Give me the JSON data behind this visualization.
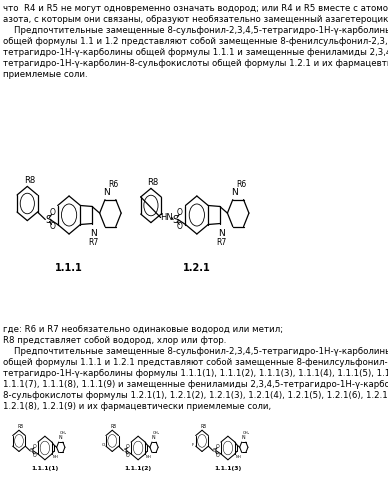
{
  "bg_color": "#ffffff",
  "text_color": "#000000",
  "font_size_body": 6.2,
  "paragraphs": [
    "что  R4 и R5 не могут одновременно означать водород; или R4 и R5 вместе с атомом",
    "азота, с которым они связаны, образуют необязательно замещенный азагетероцикл.",
    "    Предпочтительные замещенные 8-сульфонил-2,3,4,5-тетрагидро-1H-γ-карболины",
    "общей формулы 1.1 и 1.2 представляют собой замещенные 8-фенилсульфонил-2,3,4,5-",
    "тетрагидро-1H-γ-карболины общей формулы 1.1.1 и замещенные фениламиды 2,3,4,5-",
    "тетрагидро-1H-γ-карболин-8-сульфокислоты общей формулы 1.2.1 и их фармацевтически",
    "приемлемые соли."
  ],
  "label_111": "1.1.1",
  "label_121": "1.2.1",
  "text_where": "где: R6 и R7 необязательно одинаковые водород или метил;",
  "text_R8": "R8 представляет собой водород, хлор или фтор.",
  "para2": "    Предпочтительные замещенные 8-сульфонил-2,3,4,5-тетрагидро-1H-γ-карболины",
  "para2b": "общей формулы 1.1.1 и 1.2.1 представляют собой замещенные 8-фенилсульфонил-2,3,4,5-",
  "para2c": "тетрагидро-1H-γ-карболины формулы 1.1.1(1), 1.1.1(2), 1.1.1(3), 1.1.1(4), 1.1.1(5), 1.1.1(6),",
  "para2d": "1.1.1(7), 1.1.1(8), 1.1.1(9) и замещенные фениламиды 2,3,4,5-тетрагидро-1H-γ-карболин-",
  "para2e": "8-сульфокислоты формулы 1.2.1(1), 1.2.1(2), 1.2.1(3), 1.2.1(4), 1.2.1(5), 1.2.1(6), 1.2.1(7),",
  "para2f": "1.2.1(8), 1.2.1(9) и их фармацевтически приемлемые соли,",
  "label_1111": "1.1.1(1)",
  "label_1112": "1.1.1(2)",
  "label_1113": "1.1.1(3)"
}
